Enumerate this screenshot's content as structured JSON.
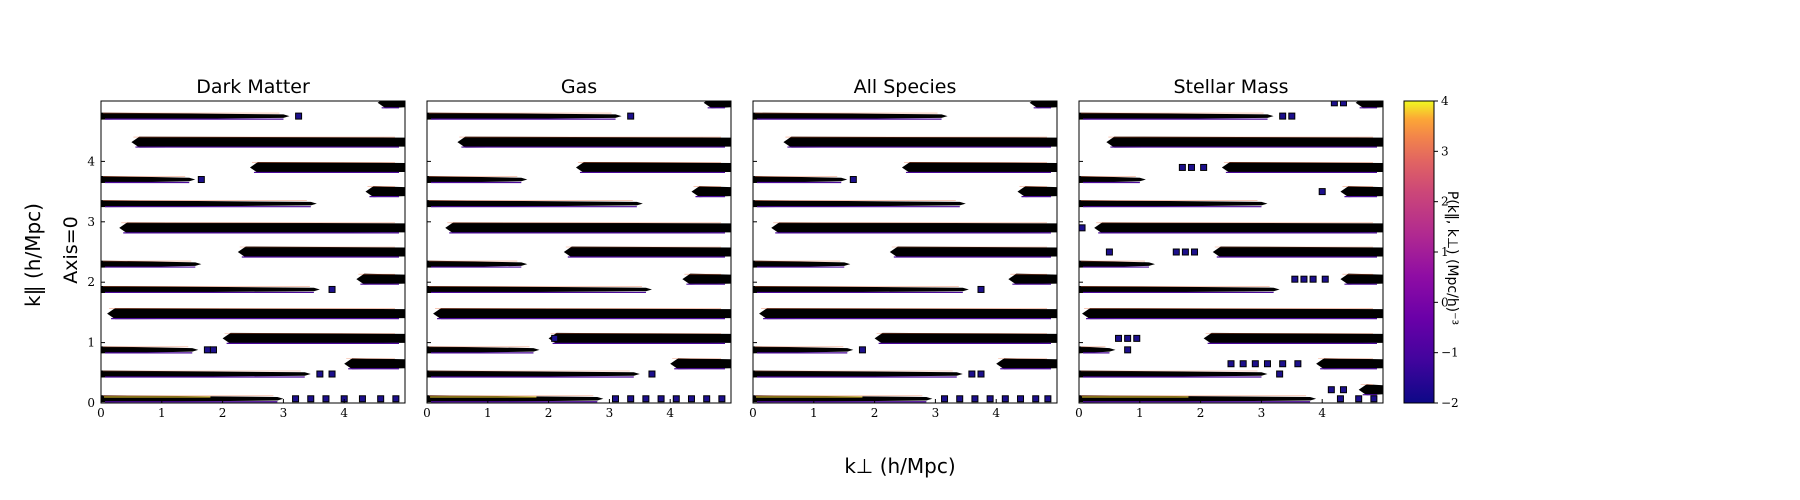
{
  "chart_data": {
    "type": "heatmap",
    "panels": [
      {
        "title": "Dark Matter",
        "bands": [
          {
            "k_par": 4.75,
            "x0": 0.0,
            "x1": 3.1,
            "start": "left",
            "extras": [
              3.25
            ]
          },
          {
            "k_par": 4.97,
            "x0": 4.55,
            "x1": 5.0,
            "start": "right",
            "extras": []
          },
          {
            "k_par": 4.32,
            "x0": 0.5,
            "x1": 5.0,
            "start": "right",
            "extras": []
          },
          {
            "k_par": 3.9,
            "x0": 2.45,
            "x1": 5.0,
            "start": "right",
            "extras": []
          },
          {
            "k_par": 3.7,
            "x0": 0.0,
            "x1": 1.55,
            "start": "left",
            "extras": [
              1.65
            ]
          },
          {
            "k_par": 3.5,
            "x0": 4.35,
            "x1": 5.0,
            "start": "right",
            "extras": []
          },
          {
            "k_par": 3.3,
            "x0": 0.0,
            "x1": 3.55,
            "start": "left",
            "extras": []
          },
          {
            "k_par": 2.9,
            "x0": 0.3,
            "x1": 5.0,
            "start": "right",
            "extras": []
          },
          {
            "k_par": 2.5,
            "x0": 2.25,
            "x1": 5.0,
            "start": "right",
            "extras": []
          },
          {
            "k_par": 2.3,
            "x0": 0.0,
            "x1": 1.65,
            "start": "left",
            "extras": []
          },
          {
            "k_par": 2.05,
            "x0": 4.2,
            "x1": 5.0,
            "start": "right",
            "extras": []
          },
          {
            "k_par": 1.88,
            "x0": 0.0,
            "x1": 3.6,
            "start": "left",
            "extras": [
              3.8
            ]
          },
          {
            "k_par": 1.48,
            "x0": 0.1,
            "x1": 5.0,
            "start": "right",
            "extras": []
          },
          {
            "k_par": 1.07,
            "x0": 2.0,
            "x1": 5.0,
            "start": "right",
            "extras": []
          },
          {
            "k_par": 0.88,
            "x0": 0.0,
            "x1": 1.6,
            "start": "left",
            "extras": [
              1.75,
              1.85
            ]
          },
          {
            "k_par": 0.65,
            "x0": 4.0,
            "x1": 5.0,
            "start": "right",
            "extras": []
          },
          {
            "k_par": 0.48,
            "x0": 0.0,
            "x1": 3.45,
            "start": "left",
            "extras": [
              3.6,
              3.8
            ]
          },
          {
            "k_par": 0.07,
            "x0": 0.0,
            "x1": 3.0,
            "start": "left",
            "extras": [
              3.2,
              3.45,
              3.7,
              4.0,
              4.3,
              4.6,
              4.85
            ]
          }
        ]
      },
      {
        "title": "Gas",
        "bands": [
          {
            "k_par": 4.75,
            "x0": 0.0,
            "x1": 3.2,
            "start": "left",
            "extras": [
              3.35
            ]
          },
          {
            "k_par": 4.97,
            "x0": 4.55,
            "x1": 5.0,
            "start": "right",
            "extras": []
          },
          {
            "k_par": 4.32,
            "x0": 0.5,
            "x1": 5.0,
            "start": "right",
            "extras": []
          },
          {
            "k_par": 3.9,
            "x0": 2.45,
            "x1": 5.0,
            "start": "right",
            "extras": []
          },
          {
            "k_par": 3.7,
            "x0": 0.0,
            "x1": 1.65,
            "start": "left",
            "extras": []
          },
          {
            "k_par": 3.5,
            "x0": 4.35,
            "x1": 5.0,
            "start": "right",
            "extras": []
          },
          {
            "k_par": 3.3,
            "x0": 0.0,
            "x1": 3.55,
            "start": "left",
            "extras": []
          },
          {
            "k_par": 2.9,
            "x0": 0.3,
            "x1": 5.0,
            "start": "right",
            "extras": []
          },
          {
            "k_par": 2.5,
            "x0": 2.25,
            "x1": 5.0,
            "start": "right",
            "extras": []
          },
          {
            "k_par": 2.3,
            "x0": 0.0,
            "x1": 1.65,
            "start": "left",
            "extras": []
          },
          {
            "k_par": 2.05,
            "x0": 4.2,
            "x1": 5.0,
            "start": "right",
            "extras": []
          },
          {
            "k_par": 1.88,
            "x0": 0.0,
            "x1": 3.7,
            "start": "left",
            "extras": []
          },
          {
            "k_par": 1.48,
            "x0": 0.1,
            "x1": 5.0,
            "start": "right",
            "extras": []
          },
          {
            "k_par": 1.07,
            "x0": 2.0,
            "x1": 5.0,
            "start": "right",
            "extras": [
              2.1
            ]
          },
          {
            "k_par": 0.88,
            "x0": 0.0,
            "x1": 1.85,
            "start": "left",
            "extras": []
          },
          {
            "k_par": 0.65,
            "x0": 4.0,
            "x1": 5.0,
            "start": "right",
            "extras": []
          },
          {
            "k_par": 0.48,
            "x0": 0.0,
            "x1": 3.5,
            "start": "left",
            "extras": [
              3.7
            ]
          },
          {
            "k_par": 0.07,
            "x0": 0.0,
            "x1": 2.9,
            "start": "left",
            "extras": [
              3.1,
              3.35,
              3.6,
              3.85,
              4.1,
              4.35,
              4.6,
              4.85
            ]
          }
        ]
      },
      {
        "title": "All Species",
        "bands": [
          {
            "k_par": 4.75,
            "x0": 0.0,
            "x1": 3.2,
            "start": "left",
            "extras": []
          },
          {
            "k_par": 4.97,
            "x0": 4.55,
            "x1": 5.0,
            "start": "right",
            "extras": []
          },
          {
            "k_par": 4.32,
            "x0": 0.5,
            "x1": 5.0,
            "start": "right",
            "extras": []
          },
          {
            "k_par": 3.9,
            "x0": 2.45,
            "x1": 5.0,
            "start": "right",
            "extras": []
          },
          {
            "k_par": 3.7,
            "x0": 0.0,
            "x1": 1.55,
            "start": "left",
            "extras": [
              1.65
            ]
          },
          {
            "k_par": 3.5,
            "x0": 4.35,
            "x1": 5.0,
            "start": "right",
            "extras": []
          },
          {
            "k_par": 3.3,
            "x0": 0.0,
            "x1": 3.5,
            "start": "left",
            "extras": []
          },
          {
            "k_par": 2.9,
            "x0": 0.3,
            "x1": 5.0,
            "start": "right",
            "extras": []
          },
          {
            "k_par": 2.5,
            "x0": 2.25,
            "x1": 5.0,
            "start": "right",
            "extras": []
          },
          {
            "k_par": 2.3,
            "x0": 0.0,
            "x1": 1.6,
            "start": "left",
            "extras": []
          },
          {
            "k_par": 2.05,
            "x0": 4.2,
            "x1": 5.0,
            "start": "right",
            "extras": []
          },
          {
            "k_par": 1.88,
            "x0": 0.0,
            "x1": 3.55,
            "start": "left",
            "extras": [
              3.75
            ]
          },
          {
            "k_par": 1.48,
            "x0": 0.1,
            "x1": 5.0,
            "start": "right",
            "extras": []
          },
          {
            "k_par": 1.07,
            "x0": 2.0,
            "x1": 5.0,
            "start": "right",
            "extras": []
          },
          {
            "k_par": 0.88,
            "x0": 0.0,
            "x1": 1.65,
            "start": "left",
            "extras": [
              1.8
            ]
          },
          {
            "k_par": 0.65,
            "x0": 4.0,
            "x1": 5.0,
            "start": "right",
            "extras": []
          },
          {
            "k_par": 0.48,
            "x0": 0.0,
            "x1": 3.45,
            "start": "left",
            "extras": [
              3.6,
              3.75
            ]
          },
          {
            "k_par": 0.07,
            "x0": 0.0,
            "x1": 2.95,
            "start": "left",
            "extras": [
              3.15,
              3.4,
              3.65,
              3.9,
              4.15,
              4.4,
              4.65,
              4.85
            ]
          }
        ]
      },
      {
        "title": "Stellar Mass",
        "bands": [
          {
            "k_par": 4.75,
            "x0": 0.0,
            "x1": 3.2,
            "start": "left",
            "extras": [
              3.35,
              3.5
            ]
          },
          {
            "k_par": 4.97,
            "x0": 4.55,
            "x1": 5.0,
            "start": "right",
            "extras": [
              4.2,
              4.35
            ]
          },
          {
            "k_par": 4.32,
            "x0": 0.45,
            "x1": 5.0,
            "start": "right",
            "extras": []
          },
          {
            "k_par": 3.9,
            "x0": 2.35,
            "x1": 5.0,
            "start": "right",
            "extras": [
              1.7,
              1.85,
              2.05
            ]
          },
          {
            "k_par": 3.7,
            "x0": 0.0,
            "x1": 1.1,
            "start": "left",
            "extras": []
          },
          {
            "k_par": 3.5,
            "x0": 4.3,
            "x1": 5.0,
            "start": "right",
            "extras": [
              4.0
            ]
          },
          {
            "k_par": 3.3,
            "x0": 0.0,
            "x1": 3.1,
            "start": "left",
            "extras": []
          },
          {
            "k_par": 2.9,
            "x0": 0.25,
            "x1": 5.0,
            "start": "right",
            "extras": [
              0.05
            ]
          },
          {
            "k_par": 2.5,
            "x0": 2.2,
            "x1": 5.0,
            "start": "right",
            "extras": [
              0.5,
              1.6,
              1.75,
              1.9
            ]
          },
          {
            "k_par": 2.3,
            "x0": 0.0,
            "x1": 1.25,
            "start": "left",
            "extras": []
          },
          {
            "k_par": 2.05,
            "x0": 4.3,
            "x1": 5.0,
            "start": "right",
            "extras": [
              3.55,
              3.7,
              3.85,
              4.05
            ]
          },
          {
            "k_par": 1.88,
            "x0": 0.0,
            "x1": 3.3,
            "start": "left",
            "extras": []
          },
          {
            "k_par": 1.48,
            "x0": 0.05,
            "x1": 5.0,
            "start": "right",
            "extras": []
          },
          {
            "k_par": 1.07,
            "x0": 2.05,
            "x1": 5.0,
            "start": "right",
            "extras": [
              0.65,
              0.8,
              0.95
            ]
          },
          {
            "k_par": 0.88,
            "x0": 0.0,
            "x1": 0.6,
            "start": "left",
            "extras": [
              0.8
            ]
          },
          {
            "k_par": 0.65,
            "x0": 3.9,
            "x1": 5.0,
            "start": "right",
            "extras": [
              2.5,
              2.7,
              2.9,
              3.1,
              3.35,
              3.6
            ]
          },
          {
            "k_par": 0.48,
            "x0": 0.0,
            "x1": 3.1,
            "start": "left",
            "extras": [
              3.3
            ]
          },
          {
            "k_par": 0.22,
            "x0": 4.6,
            "x1": 5.0,
            "start": "right",
            "extras": [
              4.15,
              4.35
            ]
          },
          {
            "k_par": 0.07,
            "x0": 0.0,
            "x1": 3.9,
            "start": "left",
            "extras": [
              4.3,
              4.6,
              4.85
            ]
          }
        ]
      }
    ],
    "xlabel": "k⊥ (h/Mpc)",
    "ylabel": "k‖ (h/Mpc)",
    "row_label": "Axis=0",
    "xlim": [
      0,
      5
    ],
    "ylim": [
      0,
      5
    ],
    "x_ticks": [
      0,
      1,
      2,
      3,
      4
    ],
    "y_ticks": [
      0,
      1,
      2,
      3,
      4
    ],
    "colorbar": {
      "label": "P(k‖, k⊥) (Mpc/h)⁻³",
      "range": [
        -2,
        4
      ],
      "ticks": [
        4,
        3,
        2,
        1,
        0,
        -1,
        -2
      ],
      "colormap": "plasma"
    },
    "colors": {
      "contour": "#000000",
      "edge_purple": "#4b0a9a",
      "edge_blue": "#1c0f8c",
      "edge_orange": "#e8683a",
      "edge_yellow": "#f0d330"
    }
  }
}
